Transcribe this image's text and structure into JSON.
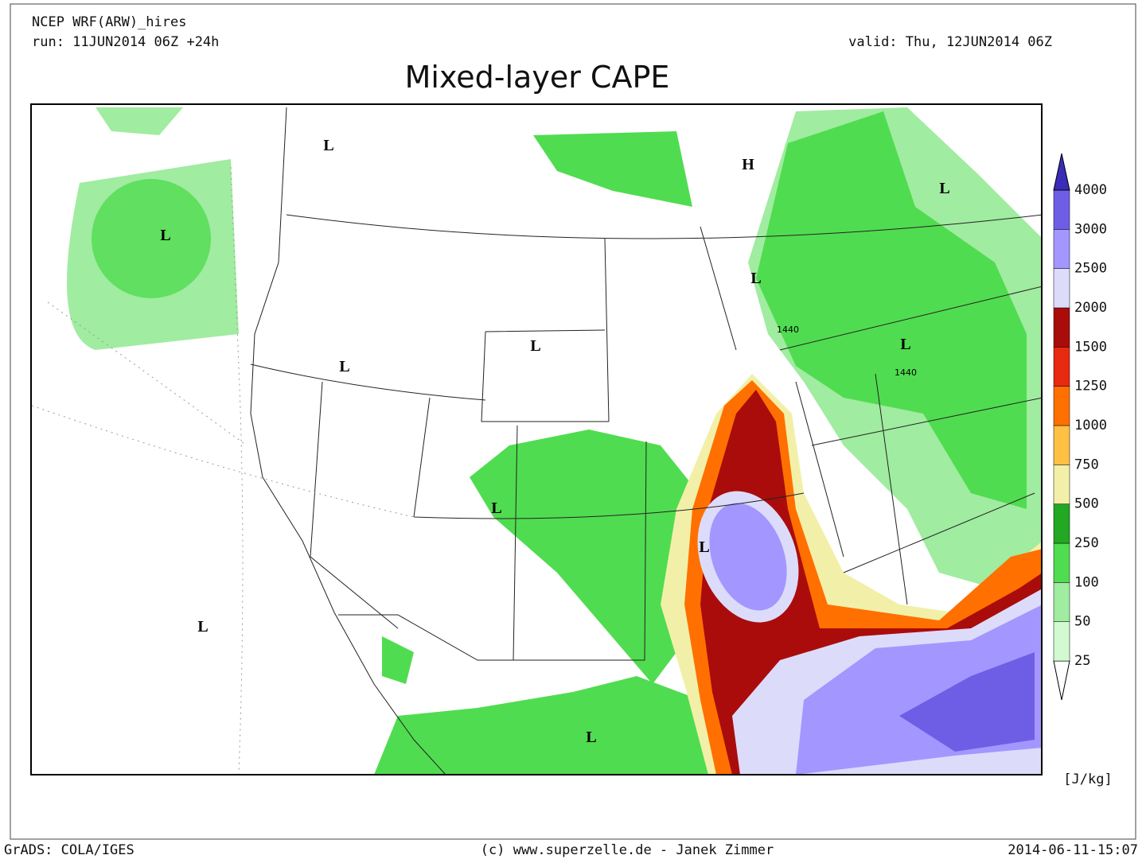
{
  "header": {
    "model": "NCEP WRF(ARW)_hires",
    "run": "run: 11JUN2014 06Z +24h",
    "valid": "valid: Thu, 12JUN2014 06Z",
    "title": "Mixed-layer CAPE"
  },
  "map_labels": [
    "L",
    "H",
    "L",
    "L",
    "L",
    "1440",
    "L",
    "1440",
    "L",
    "L",
    "L",
    "L",
    "L",
    "L"
  ],
  "colorbar": {
    "levels": [
      25,
      50,
      100,
      250,
      500,
      750,
      1000,
      1250,
      1500,
      2000,
      2500,
      3000,
      4000
    ],
    "colors": [
      "#ffffff",
      "#d2fad2",
      "#a0eca0",
      "#50dc50",
      "#22a822",
      "#f2f0a8",
      "#ffc044",
      "#ff7000",
      "#e82a10",
      "#aa0c0c",
      "#dcdcfa",
      "#a496ff",
      "#6e5ee6",
      "#3a2cb8"
    ],
    "unit": "[J/kg]"
  },
  "footer": {
    "left": "GrADS: COLA/IGES",
    "center": "(c) www.superzelle.de - Janek Zimmer",
    "right": "2014-06-11-15:07"
  }
}
